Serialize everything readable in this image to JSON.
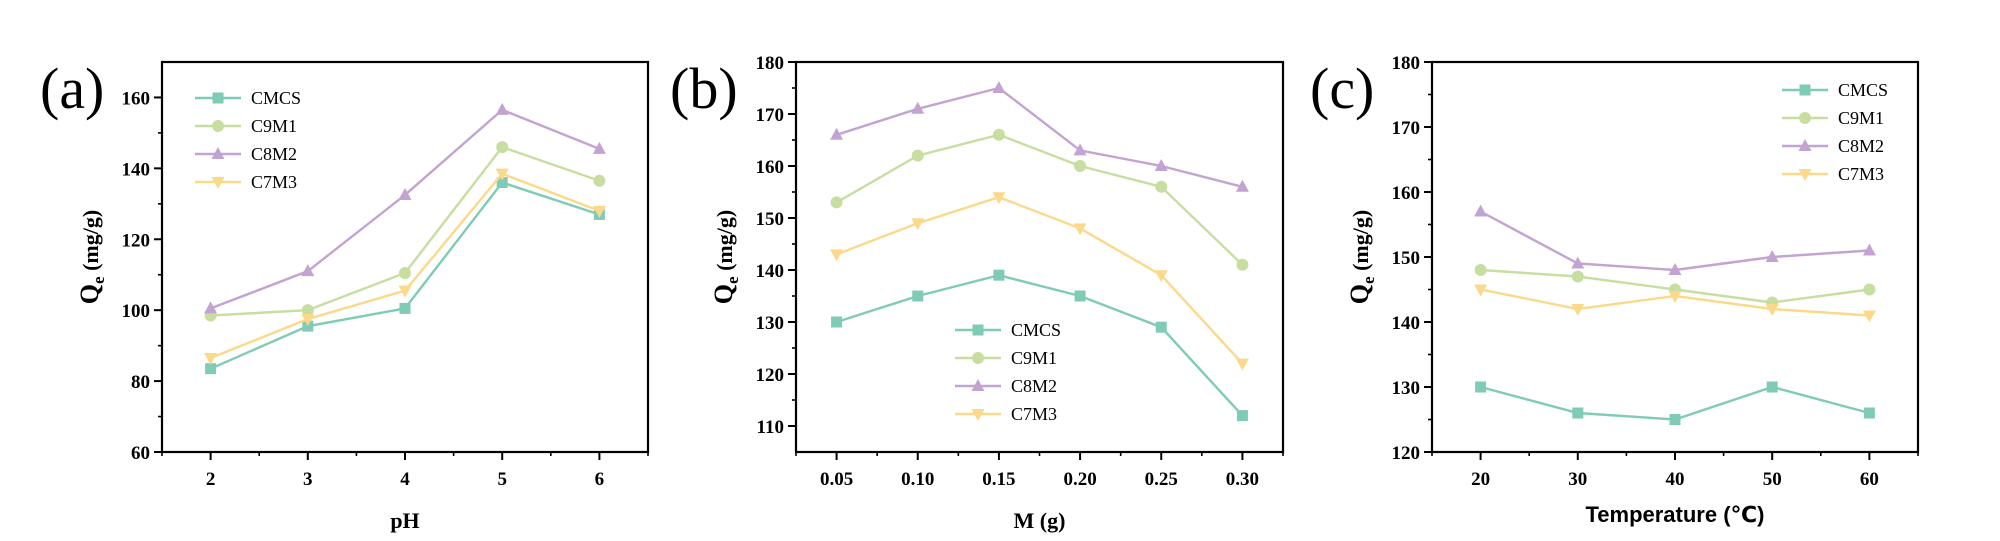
{
  "chart_data": [
    {
      "type": "line",
      "panel_label": "(a)",
      "xlabel": "pH",
      "ylabel": "Q",
      "ylabel_sub": "e",
      "ylabel_unit": " (mg/g)",
      "x": [
        2,
        3,
        4,
        5,
        6
      ],
      "x_tick_labels": [
        "2",
        "3",
        "4",
        "5",
        "6"
      ],
      "xlim": [
        1.5,
        6.5
      ],
      "ylim": [
        60,
        170
      ],
      "y_ticks": [
        60,
        80,
        100,
        120,
        140,
        160
      ],
      "y_tick_labels": [
        "60",
        "80",
        "100",
        "120",
        "140",
        "160"
      ],
      "legend_position": "top-left",
      "series": [
        {
          "name": "CMCS",
          "values": [
            83.5,
            95.5,
            100.5,
            136,
            127
          ]
        },
        {
          "name": "C9M1",
          "values": [
            98.5,
            100,
            110.5,
            146,
            136.5
          ]
        },
        {
          "name": "C8M2",
          "values": [
            100.5,
            111,
            132.5,
            156.5,
            145.5
          ]
        },
        {
          "name": "C7M3",
          "values": [
            86.5,
            97.5,
            105.5,
            138.5,
            128
          ]
        }
      ]
    },
    {
      "type": "line",
      "panel_label": "(b)",
      "xlabel": "M (g)",
      "ylabel": "Q",
      "ylabel_sub": "e",
      "ylabel_unit": " (mg/g)",
      "x": [
        0.05,
        0.1,
        0.15,
        0.2,
        0.25,
        0.3
      ],
      "x_tick_labels": [
        "0.05",
        "0.10",
        "0.15",
        "0.20",
        "0.25",
        "0.30"
      ],
      "xlim": [
        0.025,
        0.325
      ],
      "ylim": [
        105,
        180
      ],
      "y_ticks": [
        110,
        120,
        130,
        140,
        150,
        160,
        170,
        180
      ],
      "y_tick_labels": [
        "110",
        "120",
        "130",
        "140",
        "150",
        "160",
        "170",
        "180"
      ],
      "legend_position": "bottom-center",
      "series": [
        {
          "name": "CMCS",
          "values": [
            130,
            135,
            139,
            135,
            129,
            112
          ]
        },
        {
          "name": "C9M1",
          "values": [
            153,
            162,
            166,
            160,
            156,
            141
          ]
        },
        {
          "name": "C8M2",
          "values": [
            166,
            171,
            175,
            163,
            160,
            156
          ]
        },
        {
          "name": "C7M3",
          "values": [
            143,
            149,
            154,
            148,
            139,
            122
          ]
        }
      ]
    },
    {
      "type": "line",
      "panel_label": "(c)",
      "xlabel": "Temperature (℃)",
      "ylabel": "Q",
      "ylabel_sub": "e",
      "ylabel_unit": " (mg/g)",
      "x": [
        20,
        30,
        40,
        50,
        60
      ],
      "x_tick_labels": [
        "20",
        "30",
        "40",
        "50",
        "60"
      ],
      "xlim": [
        15,
        65
      ],
      "ylim": [
        120,
        180
      ],
      "y_ticks": [
        120,
        130,
        140,
        150,
        160,
        170,
        180
      ],
      "y_tick_labels": [
        "120",
        "130",
        "140",
        "150",
        "160",
        "170",
        "180"
      ],
      "legend_position": "top-right",
      "series": [
        {
          "name": "CMCS",
          "values": [
            130,
            126,
            125,
            130,
            126
          ]
        },
        {
          "name": "C9M1",
          "values": [
            148,
            147,
            145,
            143,
            145
          ]
        },
        {
          "name": "C8M2",
          "values": [
            157,
            149,
            148,
            150,
            151
          ]
        },
        {
          "name": "C7M3",
          "values": [
            145,
            142,
            144,
            142,
            141
          ]
        }
      ]
    }
  ],
  "series_colors": {
    "CMCS": "#7fcbb6",
    "C9M1": "#c7dea0",
    "C8M2": "#c2a3d1",
    "C7M3": "#fbd98b"
  },
  "series_markers": {
    "CMCS": "square",
    "C9M1": "circle",
    "C8M2": "triangle-up",
    "C7M3": "triangle-down"
  }
}
